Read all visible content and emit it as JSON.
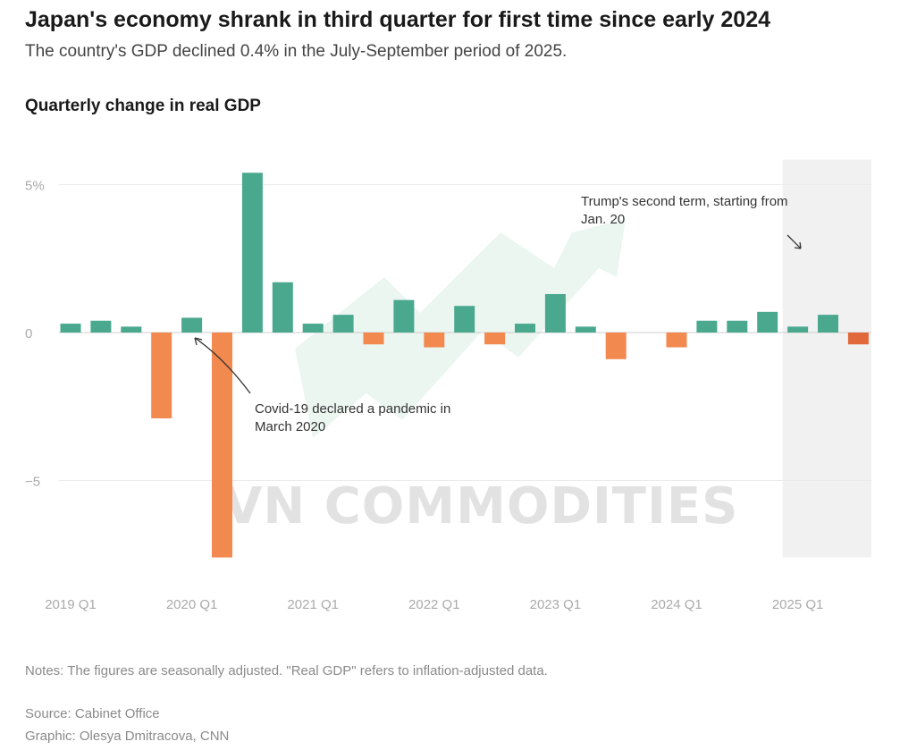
{
  "header": {
    "title": "Japan's economy shrank in third quarter for first time since early 2024",
    "subtitle": "The country's GDP declined 0.4% in the July-September period of 2025.",
    "chart_title": "Quarterly change in real GDP"
  },
  "footer": {
    "notes": "Notes: The figures are seasonally adjusted. \"Real GDP\" refers to inflation-adjusted data.",
    "source": "Source: Cabinet Office",
    "credit": "Graphic: Olesya Dmitracova, CNN"
  },
  "watermark": "VN COMMODITIES",
  "colors": {
    "positive": "#4aa88f",
    "negative": "#f2894f",
    "latest_negative": "#e0683a",
    "highlight_band": "#f1f1f1",
    "grid": "#ebebeb",
    "watermark_arrow": "#e6f4ee"
  },
  "chart_data": {
    "type": "bar",
    "title": "Quarterly change in real GDP",
    "xlabel": "",
    "ylabel": "",
    "ylim": [
      -7.6,
      5.6
    ],
    "grid": true,
    "categories": [
      "2019 Q1",
      "2019 Q2",
      "2019 Q3",
      "2019 Q4",
      "2020 Q1",
      "2020 Q2",
      "2020 Q3",
      "2020 Q4",
      "2021 Q1",
      "2021 Q2",
      "2021 Q3",
      "2021 Q4",
      "2022 Q1",
      "2022 Q2",
      "2022 Q3",
      "2022 Q4",
      "2023 Q1",
      "2023 Q2",
      "2023 Q3",
      "2023 Q4",
      "2024 Q1",
      "2024 Q2",
      "2024 Q3",
      "2024 Q4",
      "2025 Q1",
      "2025 Q2",
      "2025 Q3"
    ],
    "values": [
      0.3,
      0.4,
      0.2,
      -2.9,
      0.5,
      -7.6,
      5.4,
      1.7,
      0.3,
      0.6,
      -0.4,
      1.1,
      -0.5,
      0.9,
      -0.4,
      0.3,
      1.3,
      0.2,
      -0.9,
      0.0,
      -0.5,
      0.4,
      0.4,
      0.7,
      0.2,
      0.6,
      -0.4
    ],
    "y_ticks": [
      {
        "value": 5,
        "label": "5%"
      },
      {
        "value": 0,
        "label": "0"
      },
      {
        "value": -5,
        "label": "−5"
      }
    ],
    "x_ticks": [
      {
        "index": 0,
        "label": "2019 Q1"
      },
      {
        "index": 4,
        "label": "2020 Q1"
      },
      {
        "index": 8,
        "label": "2021 Q1"
      },
      {
        "index": 12,
        "label": "2022 Q1"
      },
      {
        "index": 16,
        "label": "2023 Q1"
      },
      {
        "index": 20,
        "label": "2024 Q1"
      },
      {
        "index": 24,
        "label": "2025 Q1"
      }
    ],
    "highlight_from_index": 24,
    "annotations": [
      {
        "text_lines": [
          "Covid-19 declared a pandemic in",
          "March 2020"
        ],
        "target_index": 4
      },
      {
        "text_lines": [
          "Trump's second term, starting from",
          "Jan. 20"
        ],
        "target_index": 24
      }
    ]
  }
}
